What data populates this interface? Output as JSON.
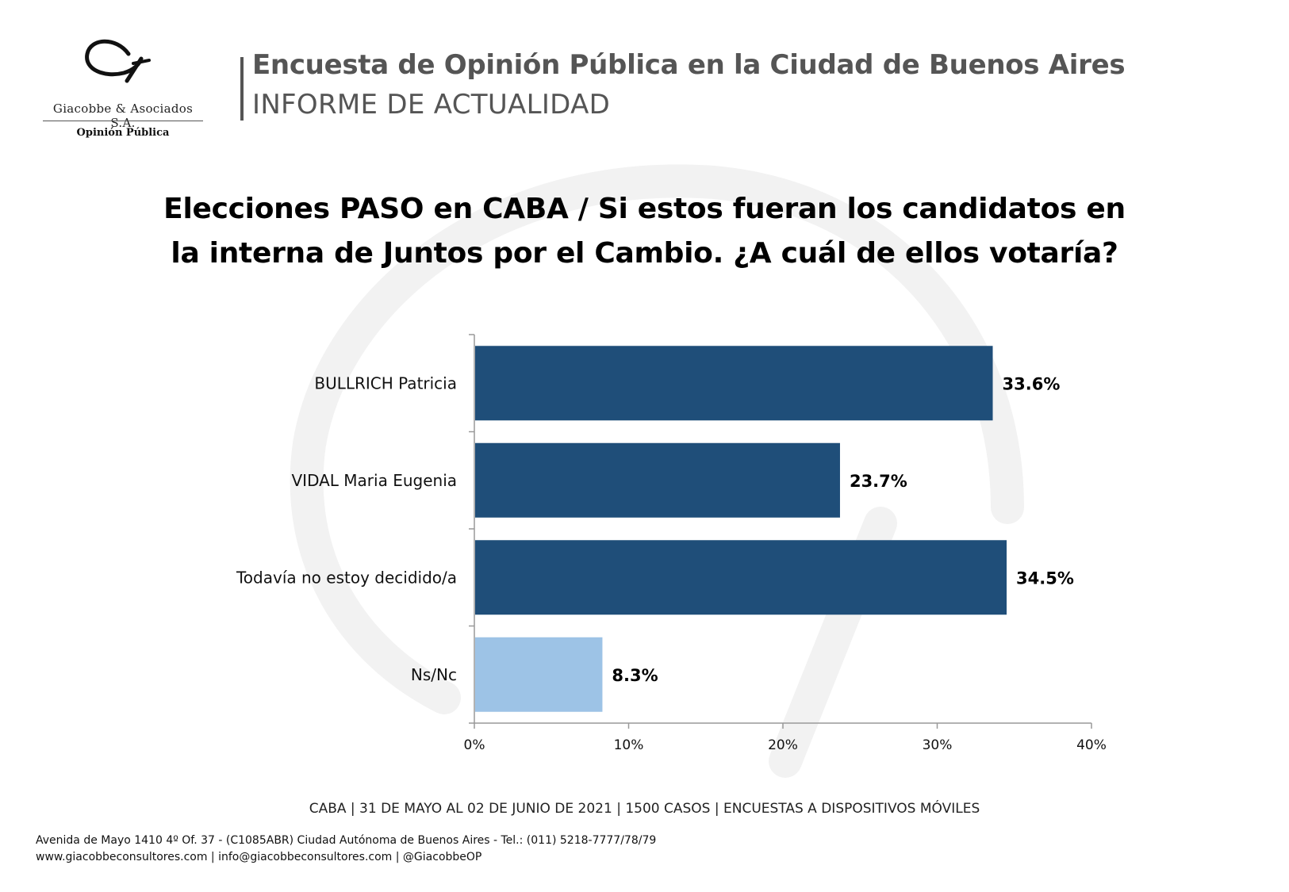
{
  "logo": {
    "name": "Giacobbe & Asociados S.A.",
    "sub": "Opinión Pública"
  },
  "header": {
    "title": "Encuesta de Opinión Pública en la Ciudad de Buenos Aires",
    "subtitle": "INFORME DE ACTUALIDAD"
  },
  "question": {
    "line1": "Elecciones PASO en CABA / Si estos fueran los candidatos en",
    "line2": "la interna de Juntos por el Cambio. ¿A cuál de ellos votaría?"
  },
  "chart_data": {
    "type": "bar",
    "orientation": "horizontal",
    "categories": [
      "BULLRICH Patricia",
      "VIDAL Maria Eugenia",
      "Todavía no estoy decidido/a",
      "Ns/Nc"
    ],
    "values": [
      33.6,
      23.7,
      34.5,
      8.3
    ],
    "value_labels": [
      "33.6%",
      "23.7%",
      "34.5%",
      "8.3%"
    ],
    "bar_colors": [
      "#1f4e79",
      "#1f4e79",
      "#1f4e79",
      "#9dc3e6"
    ],
    "xlim": [
      0,
      40
    ],
    "xticks": [
      0,
      10,
      20,
      30,
      40
    ],
    "xtick_labels": [
      "0%",
      "10%",
      "20%",
      "30%",
      "40%"
    ],
    "grid": false,
    "legend": "none"
  },
  "footer": {
    "meta": "CABA | 31 DE MAYO AL 02 DE JUNIO DE 2021 | 1500 CASOS | ENCUESTAS A DISPOSITIVOS MÓVILES",
    "address": "Avenida de Mayo 1410 4º Of. 37 - (C1085ABR) Ciudad Autónoma de Buenos Aires - Tel.: (011) 5218-7777/78/79",
    "contact": "www.giacobbeconsultores.com | info@giacobbeconsultores.com | @GiacobbeOP"
  }
}
